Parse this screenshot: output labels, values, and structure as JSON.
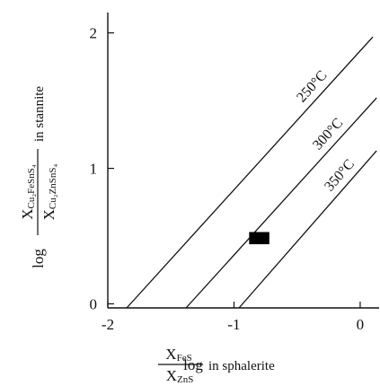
{
  "chart_data": {
    "type": "line",
    "title": "",
    "xlabel": {
      "prefix": "log",
      "numerator": "X",
      "numerator_sub": "FeS",
      "denominator": "X",
      "denominator_sub": "ZnS",
      "suffix": "in sphalerite"
    },
    "ylabel": {
      "prefix": "log",
      "numerator": "X",
      "numerator_sub": "Cu₂FeSnS₄",
      "denominator": "X",
      "denominator_sub": "Cu₂ZnSnS₄",
      "suffix": "in stannite"
    },
    "xlim": [
      -2,
      0.15
    ],
    "ylim": [
      -0.03,
      2.15
    ],
    "x_ticks": [
      {
        "value": -2,
        "label": "-2"
      },
      {
        "value": -1,
        "label": "-1"
      },
      {
        "value": 0,
        "label": "0"
      }
    ],
    "y_ticks": [
      {
        "value": 0,
        "label": "0"
      },
      {
        "value": 1,
        "label": "1"
      },
      {
        "value": 2,
        "label": "2"
      }
    ],
    "series": [
      {
        "name": "250°C",
        "x": [
          -1.85,
          0.1
        ],
        "y": [
          -0.03,
          1.97
        ]
      },
      {
        "name": "300°C",
        "x": [
          -1.38,
          0.13
        ],
        "y": [
          -0.03,
          1.52
        ]
      },
      {
        "name": "350°C",
        "x": [
          -0.96,
          0.13
        ],
        "y": [
          -0.03,
          1.13
        ]
      }
    ],
    "sample_box": {
      "x": [
        -0.88,
        -0.72
      ],
      "y": [
        0.44,
        0.53
      ]
    },
    "grid": false,
    "legend": "none"
  }
}
